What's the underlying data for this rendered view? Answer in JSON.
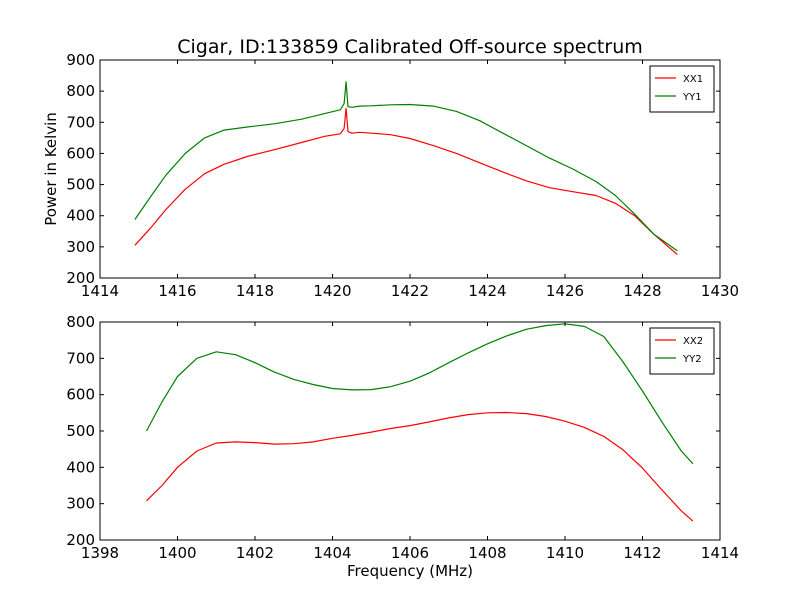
{
  "figure_title": "Cigar, ID:133859 Calibrated Off-source spectrum",
  "chart_data": [
    {
      "type": "line",
      "title": "Cigar, ID:133859 Calibrated Off-source spectrum",
      "xlabel": "",
      "ylabel": "Power in Kelvin",
      "xlim": [
        1414,
        1430
      ],
      "ylim": [
        200,
        900
      ],
      "xticks": [
        1414,
        1416,
        1418,
        1420,
        1422,
        1424,
        1426,
        1428,
        1430
      ],
      "yticks": [
        200,
        300,
        400,
        500,
        600,
        700,
        800,
        900
      ],
      "legend_position": "top-right",
      "grid": false,
      "series": [
        {
          "name": "XX1",
          "color": "#ff0000",
          "x": [
            1414.9,
            1415.3,
            1415.7,
            1416.2,
            1416.7,
            1417.2,
            1417.8,
            1418.5,
            1419.2,
            1419.8,
            1420.2,
            1420.3,
            1420.35,
            1420.4,
            1420.5,
            1420.7,
            1421.0,
            1421.5,
            1422.0,
            1422.6,
            1423.2,
            1423.8,
            1424.4,
            1425.0,
            1425.6,
            1426.2,
            1426.8,
            1427.3,
            1427.8,
            1428.3,
            1428.9
          ],
          "y": [
            305,
            360,
            420,
            485,
            535,
            565,
            590,
            612,
            635,
            655,
            663,
            680,
            745,
            670,
            665,
            668,
            665,
            660,
            648,
            625,
            600,
            570,
            540,
            512,
            490,
            477,
            465,
            440,
            400,
            340,
            275
          ]
        },
        {
          "name": "YY1",
          "color": "#008000",
          "x": [
            1414.9,
            1415.3,
            1415.7,
            1416.2,
            1416.7,
            1417.2,
            1417.8,
            1418.5,
            1419.2,
            1419.8,
            1420.2,
            1420.3,
            1420.35,
            1420.4,
            1420.5,
            1420.7,
            1421.0,
            1421.5,
            1422.0,
            1422.6,
            1423.2,
            1423.8,
            1424.4,
            1425.0,
            1425.6,
            1426.2,
            1426.8,
            1427.3,
            1427.8,
            1428.3,
            1428.9
          ],
          "y": [
            388,
            460,
            530,
            600,
            650,
            675,
            685,
            695,
            710,
            728,
            740,
            760,
            830,
            750,
            748,
            752,
            753,
            756,
            757,
            752,
            735,
            705,
            665,
            625,
            585,
            550,
            510,
            465,
            405,
            340,
            287
          ]
        }
      ]
    },
    {
      "type": "line",
      "title": "",
      "xlabel": "Frequency (MHz)",
      "ylabel": "",
      "xlim": [
        1398,
        1414
      ],
      "ylim": [
        200,
        800
      ],
      "xticks": [
        1398,
        1400,
        1402,
        1404,
        1406,
        1408,
        1410,
        1412,
        1414
      ],
      "yticks": [
        200,
        300,
        400,
        500,
        600,
        700,
        800
      ],
      "legend_position": "top-right",
      "grid": false,
      "series": [
        {
          "name": "XX2",
          "color": "#ff0000",
          "x": [
            1399.2,
            1399.6,
            1400.0,
            1400.5,
            1401.0,
            1401.5,
            1402.0,
            1402.5,
            1403.0,
            1403.5,
            1404.0,
            1404.5,
            1405.0,
            1405.5,
            1406.0,
            1406.5,
            1407.0,
            1407.5,
            1408.0,
            1408.5,
            1409.0,
            1409.5,
            1410.0,
            1410.5,
            1411.0,
            1411.5,
            1412.0,
            1412.5,
            1413.0,
            1413.3
          ],
          "y": [
            308,
            350,
            400,
            445,
            467,
            470,
            468,
            464,
            465,
            470,
            480,
            488,
            497,
            507,
            515,
            525,
            536,
            545,
            550,
            551,
            548,
            540,
            527,
            510,
            485,
            448,
            398,
            338,
            280,
            252
          ]
        },
        {
          "name": "YY2",
          "color": "#008000",
          "x": [
            1399.2,
            1399.6,
            1400.0,
            1400.5,
            1401.0,
            1401.5,
            1402.0,
            1402.5,
            1403.0,
            1403.5,
            1404.0,
            1404.5,
            1405.0,
            1405.5,
            1406.0,
            1406.5,
            1407.0,
            1407.5,
            1408.0,
            1408.5,
            1409.0,
            1409.5,
            1410.0,
            1410.5,
            1411.0,
            1411.5,
            1412.0,
            1412.5,
            1413.0,
            1413.3
          ],
          "y": [
            500,
            580,
            650,
            700,
            718,
            710,
            688,
            662,
            642,
            628,
            617,
            613,
            614,
            622,
            637,
            660,
            688,
            715,
            740,
            762,
            780,
            790,
            795,
            788,
            760,
            690,
            610,
            525,
            445,
            410
          ]
        }
      ]
    }
  ]
}
